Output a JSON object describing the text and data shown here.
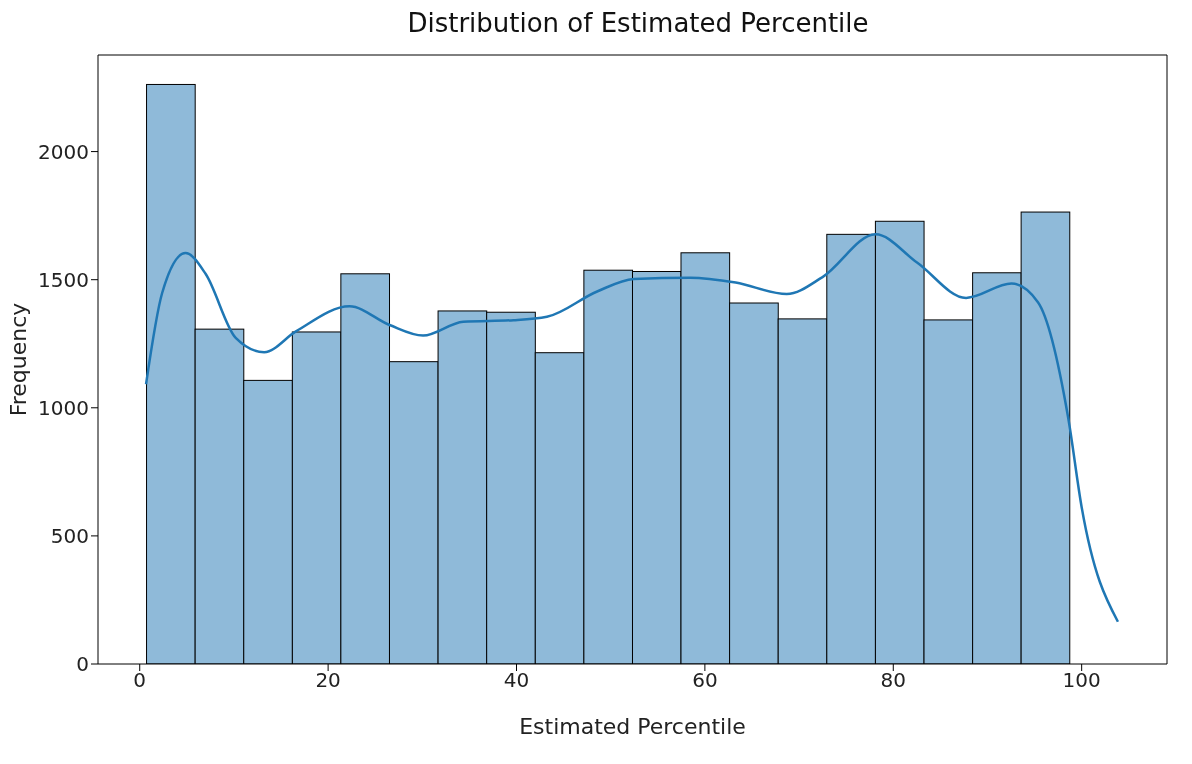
{
  "chart_data": {
    "type": "histogram",
    "title": "Distribution of Estimated Percentile",
    "xlabel": "Estimated Percentile",
    "ylabel": "Frequency",
    "bins": [
      0.73,
      5.89,
      11.05,
      16.21,
      21.36,
      26.52,
      31.68,
      36.84,
      42.0,
      47.16,
      52.32,
      57.47,
      62.63,
      67.79,
      72.95,
      78.11,
      83.27,
      88.43,
      93.58,
      98.74,
      103.9
    ],
    "values": [
      2262,
      1307,
      1107,
      1296,
      1523,
      1180,
      1378,
      1373,
      1215,
      1537,
      1532,
      1605,
      1409,
      1347,
      1677,
      1728,
      1343,
      1527,
      1764,
      null
    ],
    "color": "#8fbad9",
    "series": [
      {
        "type": "line",
        "color": "#1f77b4",
        "x": [
          0.67,
          2.38,
          4.86,
          6.99,
          10.19,
          13.21,
          16.58,
          22.27,
          26.53,
          30.08,
          34.35,
          39.68,
          43.23,
          48.56,
          52.45,
          58.46,
          63.27,
          68.69,
          72.49,
          78.11,
          82.52,
          87.73,
          92.55,
          95.36,
          98.57,
          100.0,
          103.85
        ],
        "values": [
          1092,
          1448,
          1604,
          1523,
          1273,
          1217,
          1298,
          1396,
          1323,
          1282,
          1336,
          1342,
          1355,
          1454,
          1503,
          1508,
          1489,
          1444,
          1510,
          1677,
          1567,
          1429,
          1485,
          1412,
          961,
          612,
          165
        ]
      }
    ],
    "xlim": [
      -4.43,
      109.06
    ],
    "xticks": [
      0,
      20,
      40,
      60,
      80,
      100
    ],
    "ylim": [
      0,
      2377
    ],
    "yticks": [
      0,
      500,
      1000,
      1500,
      2000
    ],
    "grid": false,
    "legend": false,
    "marker": "none",
    "line_style": "solid"
  }
}
